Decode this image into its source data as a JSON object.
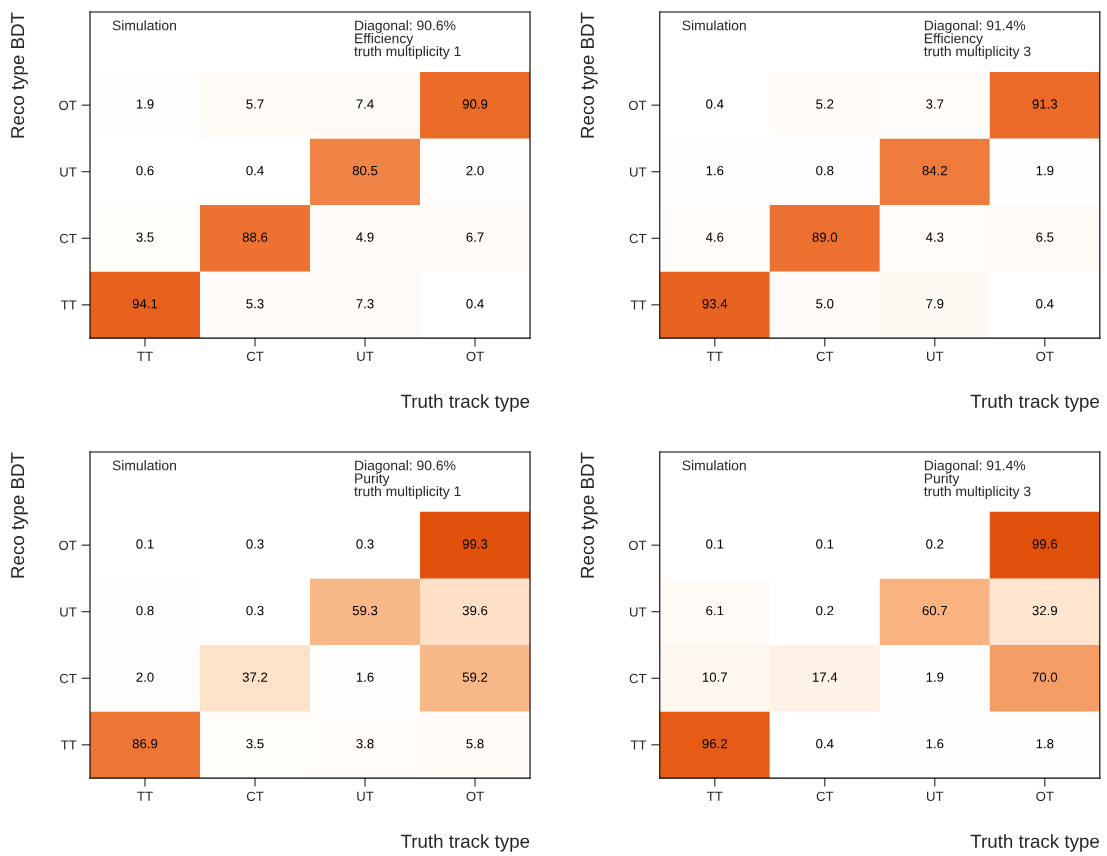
{
  "chart_data": [
    {
      "type": "heatmap",
      "xlabel": "Truth track type",
      "ylabel": "Reco type BDT",
      "annotations": [
        "Simulation",
        "Diagonal: 90.6%\nEfficiency\ntruth multiplicity 1"
      ],
      "categories": [
        "TT",
        "CT",
        "UT",
        "OT"
      ],
      "y_categories": [
        "OT",
        "UT",
        "CT",
        "TT"
      ],
      "grid": false,
      "cells": [
        [
          1.9,
          5.7,
          7.4,
          90.9
        ],
        [
          0.6,
          0.4,
          80.5,
          2.0
        ],
        [
          3.5,
          88.6,
          4.9,
          6.7
        ],
        [
          94.1,
          5.3,
          7.3,
          0.4
        ]
      ],
      "cell_labels": [
        [
          "1.9",
          "5.7",
          "7.4",
          "90.9"
        ],
        [
          "0.6",
          "0.4",
          "80.5",
          "2.0"
        ],
        [
          "3.5",
          "88.6",
          "4.9",
          "6.7"
        ],
        [
          "94.1",
          "5.3",
          "7.3",
          "0.4"
        ]
      ]
    },
    {
      "type": "heatmap",
      "xlabel": "Truth track type",
      "ylabel": "Reco type BDT",
      "annotations": [
        "Simulation",
        "Diagonal: 91.4%\nEfficiency\ntruth multiplicity 3"
      ],
      "categories": [
        "TT",
        "CT",
        "UT",
        "OT"
      ],
      "y_categories": [
        "OT",
        "UT",
        "CT",
        "TT"
      ],
      "grid": false,
      "cells": [
        [
          0.4,
          5.2,
          3.7,
          91.3
        ],
        [
          1.6,
          0.8,
          84.2,
          1.9
        ],
        [
          4.6,
          89.0,
          4.3,
          6.5
        ],
        [
          93.4,
          5.0,
          7.9,
          0.4
        ]
      ],
      "cell_labels": [
        [
          "0.4",
          "5.2",
          "3.7",
          "91.3"
        ],
        [
          "1.6",
          "0.8",
          "84.2",
          "1.9"
        ],
        [
          "4.6",
          "89.0",
          "4.3",
          "6.5"
        ],
        [
          "93.4",
          "5.0",
          "7.9",
          "0.4"
        ]
      ]
    },
    {
      "type": "heatmap",
      "xlabel": "Truth track type",
      "ylabel": "Reco type BDT",
      "annotations": [
        "Simulation",
        "Diagonal: 90.6%\nPurity\ntruth multiplicity 1"
      ],
      "categories": [
        "TT",
        "CT",
        "UT",
        "OT"
      ],
      "y_categories": [
        "OT",
        "UT",
        "CT",
        "TT"
      ],
      "grid": false,
      "cells": [
        [
          0.1,
          0.3,
          0.3,
          99.3
        ],
        [
          0.8,
          0.3,
          59.3,
          39.6
        ],
        [
          2.0,
          37.2,
          1.6,
          59.2
        ],
        [
          86.9,
          3.5,
          3.8,
          5.8
        ]
      ],
      "cell_labels": [
        [
          "0.1",
          "0.3",
          "0.3",
          "99.3"
        ],
        [
          "0.8",
          "0.3",
          "59.3",
          "39.6"
        ],
        [
          "2.0",
          "37.2",
          "1.6",
          "59.2"
        ],
        [
          "86.9",
          "3.5",
          "3.8",
          "5.8"
        ]
      ]
    },
    {
      "type": "heatmap",
      "xlabel": "Truth track type",
      "ylabel": "Reco type BDT",
      "annotations": [
        "Simulation",
        "Diagonal: 91.4%\nPurity\ntruth multiplicity 3"
      ],
      "categories": [
        "TT",
        "CT",
        "UT",
        "OT"
      ],
      "y_categories": [
        "OT",
        "UT",
        "CT",
        "TT"
      ],
      "grid": false,
      "cells": [
        [
          0.1,
          0.1,
          0.2,
          99.6
        ],
        [
          6.1,
          0.2,
          60.7,
          32.9
        ],
        [
          10.7,
          17.4,
          1.9,
          70.0
        ],
        [
          96.2,
          0.4,
          1.6,
          1.8
        ]
      ],
      "cell_labels": [
        [
          "0.1",
          "0.1",
          "0.2",
          "99.6"
        ],
        [
          "6.1",
          "0.2",
          "60.7",
          "32.9"
        ],
        [
          "10.7",
          "17.4",
          "1.9",
          "70.0"
        ],
        [
          "96.2",
          "0.4",
          "1.6",
          "1.8"
        ]
      ]
    }
  ]
}
